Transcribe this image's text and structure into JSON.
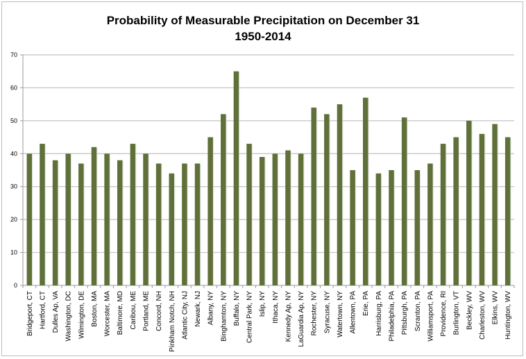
{
  "chart_data": {
    "type": "bar",
    "title": "Probability of Measurable Precipitation on December 31",
    "subtitle": "1950-2014",
    "xlabel": "",
    "ylabel": "",
    "ylim": [
      0,
      70
    ],
    "yticks": [
      "0",
      "10",
      "20",
      "30",
      "40",
      "50",
      "60",
      "70"
    ],
    "grid": true,
    "legend": "none",
    "bar_color": "#5f7039",
    "categories": [
      "Bridgeport, CT",
      "Hartford, CT",
      "Dulles Ap, VA",
      "Washington, DC",
      "Wilmington, DE",
      "Boston, MA",
      "Worcester, MA",
      "Baltimore, MD",
      "Caribou, ME",
      "Portland, ME",
      "Concord, NH",
      "Pinkham Notch, NH",
      "Atlantic City, NJ",
      "Newark, NJ",
      "Albany, NY",
      "Binghamton, NY",
      "Buffalo, NY",
      "Central Park, NY",
      "Islip, NY",
      "Ithaca, NY",
      "Kennedy Ap, NY",
      "LaGuardia Ap, NY",
      "Rochester, NY",
      "Syracuse, NY",
      "Watertown, NY",
      "Allentown, PA",
      "Erie, PA",
      "Harrisburg, PA",
      "Philadelphia, PA",
      "Pittsburgh, PA",
      "Scranton, PA",
      "Williamsport, PA",
      "Providence, RI",
      "Burlington, VT",
      "Beckley, WV",
      "Charleston, WV",
      "Elkins, WV",
      "Huntington, WV"
    ],
    "values": [
      40,
      43,
      38,
      40,
      37,
      42,
      40,
      38,
      43,
      40,
      37,
      34,
      37,
      37,
      45,
      52,
      65,
      43,
      39,
      40,
      41,
      40,
      54,
      52,
      55,
      35,
      57,
      34,
      35,
      51,
      35,
      37,
      43,
      45,
      50,
      46,
      49,
      45
    ]
  }
}
